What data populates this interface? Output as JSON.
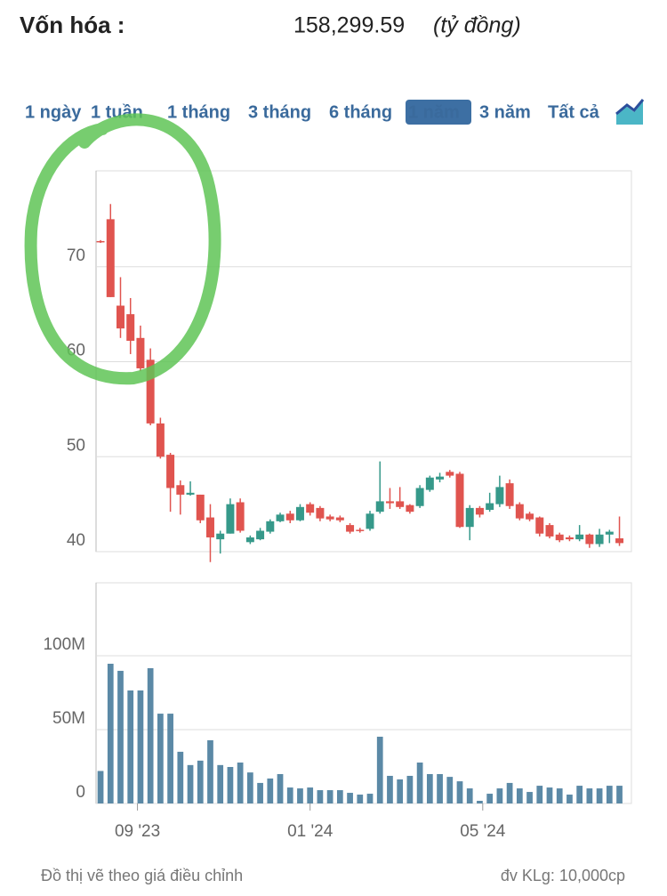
{
  "header": {
    "label": "Vốn hóa :",
    "value": "158,299.59",
    "unit": "(tỷ đồng)"
  },
  "ranges": [
    "1 ngày",
    "1 tuần",
    "1 tháng",
    "3 tháng",
    "6 tháng",
    "1 năm",
    "3 năm",
    "Tất cả"
  ],
  "selected_range": 5,
  "chart_data": [
    {
      "type": "candlestick",
      "open": [
        72.7,
        75.0,
        65.9,
        65.0,
        62.5,
        60.2,
        53.5,
        50.2,
        47.0,
        46.0,
        46.0,
        43.6,
        41.3,
        41.9,
        45.2,
        41.0,
        41.3,
        42.1,
        43.2,
        44.0,
        43.3,
        45.0,
        44.6,
        43.7,
        43.6,
        42.8,
        42.3,
        42.4,
        44.2,
        45.3,
        45.3,
        44.9,
        44.8,
        46.5,
        47.6,
        48.4,
        48.2,
        42.6,
        44.6,
        44.4,
        45.0,
        47.2,
        45.0,
        44.0,
        43.6,
        42.8,
        41.8,
        41.5,
        41.3,
        41.8,
        40.8,
        41.8,
        41.4
      ],
      "high": [
        72.8,
        76.6,
        68.9,
        66.7,
        63.8,
        61.4,
        54.1,
        50.4,
        47.5,
        47.4,
        46.0,
        45.0,
        42.2,
        45.6,
        45.6,
        41.7,
        42.5,
        43.4,
        44.1,
        44.3,
        45.0,
        45.2,
        44.8,
        43.9,
        43.8,
        43.0,
        42.5,
        44.3,
        49.5,
        46.7,
        46.8,
        45.0,
        47.0,
        48.0,
        48.3,
        48.6,
        48.4,
        44.9,
        44.8,
        46.2,
        48.0,
        47.6,
        45.2,
        44.2,
        43.7,
        43.0,
        42.0,
        41.7,
        42.8,
        41.9,
        42.4,
        42.3,
        43.7
      ],
      "low": [
        72.5,
        66.8,
        62.5,
        60.8,
        59.0,
        53.3,
        49.8,
        44.2,
        43.9,
        45.9,
        43.0,
        38.9,
        39.8,
        41.9,
        42.0,
        40.8,
        41.2,
        41.9,
        43.1,
        43.0,
        43.2,
        43.8,
        43.2,
        43.2,
        43.1,
        41.9,
        42.0,
        42.2,
        44.0,
        44.5,
        44.5,
        44.0,
        44.6,
        46.3,
        47.3,
        47.8,
        42.5,
        41.2,
        43.6,
        44.2,
        44.7,
        44.5,
        43.3,
        43.2,
        41.6,
        41.4,
        41.0,
        41.1,
        41.1,
        40.4,
        40.5,
        40.9,
        40.6
      ],
      "close": [
        72.6,
        66.8,
        63.5,
        62.2,
        59.3,
        53.5,
        50.0,
        46.7,
        46.0,
        46.2,
        43.3,
        41.5,
        41.9,
        45.0,
        42.2,
        41.5,
        42.2,
        43.2,
        43.9,
        43.3,
        44.7,
        44.1,
        43.5,
        43.4,
        43.3,
        42.1,
        42.2,
        44.0,
        45.3,
        45.1,
        44.7,
        44.2,
        46.7,
        47.8,
        47.9,
        48.0,
        42.6,
        44.6,
        43.9,
        45.1,
        46.8,
        44.8,
        43.5,
        43.4,
        41.9,
        41.6,
        41.2,
        41.3,
        41.8,
        40.8,
        41.8,
        42.1,
        40.9
      ],
      "up_color": "#36998a",
      "down_color": "#e0544f",
      "ylim": [
        38.5,
        80
      ],
      "yticks": [
        40,
        50,
        60,
        70
      ],
      "grid": true,
      "xlim": [
        -0.45,
        53.2
      ]
    },
    {
      "type": "bar",
      "values": [
        22000000,
        94600000,
        89800000,
        76500000,
        76500000,
        91600000,
        60800000,
        60800000,
        35000000,
        26000000,
        29000000,
        42800000,
        26000000,
        24700000,
        27700000,
        21000000,
        13900000,
        16900000,
        19900000,
        10800000,
        10200000,
        10800000,
        9000000,
        9000000,
        9000000,
        7200000,
        6000000,
        6600000,
        45200000,
        18700000,
        16300000,
        18700000,
        27700000,
        19900000,
        19900000,
        18000000,
        15000000,
        10200000,
        1800000,
        6600000,
        10200000,
        13900000,
        10200000,
        7800000,
        12000000,
        10800000,
        10200000,
        6000000,
        12000000,
        10200000,
        10200000,
        12000000,
        12000000
      ],
      "color": "#5b89a6",
      "ylim": [
        0,
        150000000
      ],
      "yticks": [
        0,
        {
          "value": 50000000,
          "label": "50M"
        },
        {
          "value": 100000000,
          "label": "100M"
        }
      ],
      "grid": true,
      "xlim": [
        -0.45,
        53.2
      ],
      "xticks": [
        {
          "value": 3.7,
          "label": "09 '23"
        },
        {
          "value": 21.0,
          "label": "01 '24"
        },
        {
          "value": 38.3,
          "label": "05 '24"
        }
      ]
    }
  ],
  "footer": {
    "note": "Đồ thị vẽ theo giá điều chỉnh",
    "unit": "đv KLg: 10,000cp"
  }
}
